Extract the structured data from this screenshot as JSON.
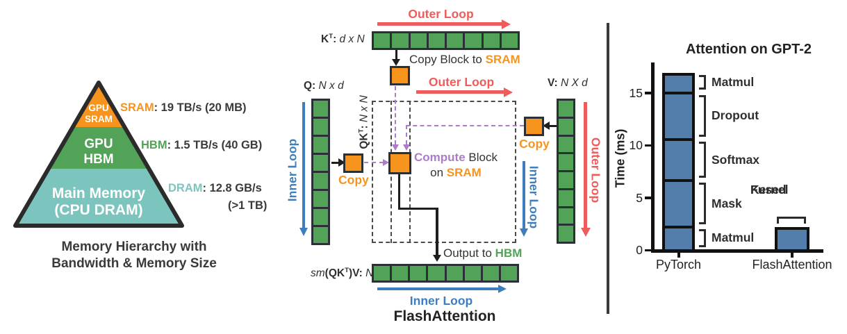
{
  "colors": {
    "green": "#52A357",
    "orange": "#F7941E",
    "teal": "#7CC5BE",
    "red": "#EE5C5B",
    "blue": "#3E7EBE",
    "purple": "#AD7BC8",
    "dark": "#2B2F36",
    "bar_blue": "#537EAC"
  },
  "memory_hierarchy": {
    "levels": [
      {
        "line1": "GPU",
        "line2": "SRAM",
        "stat_name": "SRAM",
        "stat_rest": ": 19 TB/s (20 MB)",
        "color": "#F7941E"
      },
      {
        "line1": "GPU",
        "line2": "HBM",
        "stat_name": "HBM",
        "stat_rest": ": 1.5 TB/s (40 GB)",
        "color": "#52A357"
      },
      {
        "line1": "Main Memory",
        "line2": "(CPU DRAM)",
        "stat_name": "DRAM",
        "stat_rest": ": 12.8 GB/s",
        "stat_rest2": "(>1 TB)",
        "color": "#7CC5BE"
      }
    ],
    "caption_line1": "Memory Hierarchy with",
    "caption_line2": "Bandwidth & Memory Size"
  },
  "diagram": {
    "caption": "FlashAttention",
    "outer_loop": "Outer Loop",
    "inner_loop": "Inner Loop",
    "copy": "Copy",
    "copy_block_prefix": "Copy Block to ",
    "sram": "SRAM",
    "compute_word": "Compute",
    "compute_rest": " Block",
    "on_word": "on ",
    "output_prefix": "Output to ",
    "hbm": "HBM",
    "blocks_per_row": 8,
    "labels": {
      "kt_base": "K",
      "kt_sup": "T",
      "kt_colon": ": ",
      "kt_dims": "d x N",
      "q_base": "Q: ",
      "q_dims": "N x d",
      "v_base": "V: ",
      "v_dims": "N X d",
      "qkt_base": "QK",
      "qkt_sup": "T",
      "qkt_colon": ": ",
      "qkt_dims": "N x N",
      "out_sm": "sm",
      "out_base": "(QK",
      "out_sup": "T",
      "out_close": ")V: ",
      "out_dims": "N x d"
    }
  },
  "chart_data": {
    "type": "bar",
    "title": "Attention on GPT-2",
    "ylabel": "Time (ms)",
    "yticks": [
      0,
      5,
      10,
      15
    ],
    "ylim": [
      0,
      17.6
    ],
    "grid": false,
    "legend_position": "none",
    "categories": [
      "PyTorch",
      "FlashAttention"
    ],
    "bar_color": "#537EAC",
    "bars": [
      {
        "category": "PyTorch",
        "segments": [
          {
            "label": "Matmul",
            "value": 2.2
          },
          {
            "label": "Mask",
            "value": 4.4
          },
          {
            "label": "Softmax",
            "value": 3.9
          },
          {
            "label": "Dropout",
            "value": 4.5
          },
          {
            "label": "Matmul",
            "value": 1.9
          }
        ]
      },
      {
        "category": "FlashAttention",
        "segments": [
          {
            "label": "Fused Kernel",
            "value": 2.2
          }
        ],
        "annotation_lines": [
          "Fused",
          "Kernel"
        ]
      }
    ]
  }
}
